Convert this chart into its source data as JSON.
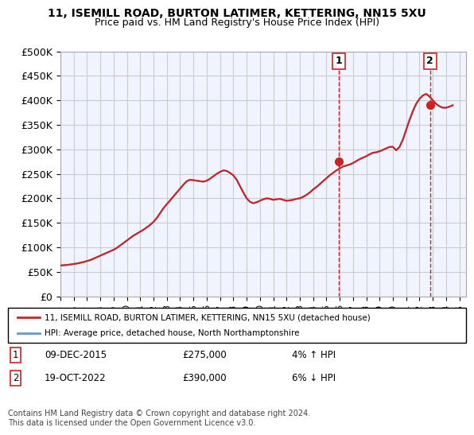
{
  "title": "11, ISEMILL ROAD, BURTON LATIMER, KETTERING, NN15 5XU",
  "subtitle": "Price paid vs. HM Land Registry's House Price Index (HPI)",
  "ylabel_ticks": [
    "£0",
    "£50K",
    "£100K",
    "£150K",
    "£200K",
    "£250K",
    "£300K",
    "£350K",
    "£400K",
    "£450K",
    "£500K"
  ],
  "ytick_vals": [
    0,
    50000,
    100000,
    150000,
    200000,
    250000,
    300000,
    350000,
    400000,
    450000,
    500000
  ],
  "ylim": [
    0,
    500000
  ],
  "xlim_start": 1995.0,
  "xlim_end": 2025.5,
  "hpi_color": "#6699cc",
  "price_color": "#cc2222",
  "dashed_color": "#cc2222",
  "bg_color": "#f0f4ff",
  "grid_color": "#cccccc",
  "purchase1_x": 2015.92,
  "purchase1_y": 275000,
  "purchase1_label": "1",
  "purchase2_x": 2022.79,
  "purchase2_y": 390000,
  "purchase2_label": "2",
  "legend_line1": "11, ISEMILL ROAD, BURTON LATIMER, KETTERING, NN15 5XU (detached house)",
  "legend_line2": "HPI: Average price, detached house, North Northamptonshire",
  "table_row1": [
    "1",
    "09-DEC-2015",
    "£275,000",
    "4% ↑ HPI"
  ],
  "table_row2": [
    "2",
    "19-OCT-2022",
    "£390,000",
    "6% ↓ HPI"
  ],
  "footer": "Contains HM Land Registry data © Crown copyright and database right 2024.\nThis data is licensed under the Open Government Licence v3.0.",
  "hpi_data_x": [
    1995.0,
    1995.25,
    1995.5,
    1995.75,
    1996.0,
    1996.25,
    1996.5,
    1996.75,
    1997.0,
    1997.25,
    1997.5,
    1997.75,
    1998.0,
    1998.25,
    1998.5,
    1998.75,
    1999.0,
    1999.25,
    1999.5,
    1999.75,
    2000.0,
    2000.25,
    2000.5,
    2000.75,
    2001.0,
    2001.25,
    2001.5,
    2001.75,
    2002.0,
    2002.25,
    2002.5,
    2002.75,
    2003.0,
    2003.25,
    2003.5,
    2003.75,
    2004.0,
    2004.25,
    2004.5,
    2004.75,
    2005.0,
    2005.25,
    2005.5,
    2005.75,
    2006.0,
    2006.25,
    2006.5,
    2006.75,
    2007.0,
    2007.25,
    2007.5,
    2007.75,
    2008.0,
    2008.25,
    2008.5,
    2008.75,
    2009.0,
    2009.25,
    2009.5,
    2009.75,
    2010.0,
    2010.25,
    2010.5,
    2010.75,
    2011.0,
    2011.25,
    2011.5,
    2011.75,
    2012.0,
    2012.25,
    2012.5,
    2012.75,
    2013.0,
    2013.25,
    2013.5,
    2013.75,
    2014.0,
    2014.25,
    2014.5,
    2014.75,
    2015.0,
    2015.25,
    2015.5,
    2015.75,
    2016.0,
    2016.25,
    2016.5,
    2016.75,
    2017.0,
    2017.25,
    2017.5,
    2017.75,
    2018.0,
    2018.25,
    2018.5,
    2018.75,
    2019.0,
    2019.25,
    2019.5,
    2019.75,
    2020.0,
    2020.25,
    2020.5,
    2020.75,
    2021.0,
    2021.25,
    2021.5,
    2021.75,
    2022.0,
    2022.25,
    2022.5,
    2022.75,
    2023.0,
    2023.25,
    2023.5,
    2023.75,
    2024.0,
    2024.25,
    2024.5
  ],
  "hpi_data_y": [
    63000,
    63500,
    64000,
    65000,
    66000,
    67000,
    68500,
    70000,
    72000,
    74000,
    77000,
    80000,
    83000,
    86000,
    89000,
    92000,
    95000,
    99000,
    104000,
    109000,
    114000,
    119000,
    124000,
    128000,
    132000,
    136000,
    141000,
    146000,
    152000,
    160000,
    170000,
    180000,
    188000,
    196000,
    204000,
    212000,
    220000,
    228000,
    235000,
    238000,
    237000,
    236000,
    235000,
    234000,
    236000,
    240000,
    245000,
    250000,
    254000,
    257000,
    256000,
    252000,
    247000,
    238000,
    225000,
    212000,
    200000,
    193000,
    190000,
    192000,
    195000,
    198000,
    200000,
    199000,
    197000,
    198000,
    199000,
    197000,
    195000,
    196000,
    197000,
    199000,
    200000,
    203000,
    207000,
    212000,
    218000,
    223000,
    229000,
    235000,
    241000,
    247000,
    252000,
    257000,
    261000,
    265000,
    267000,
    269000,
    272000,
    276000,
    280000,
    283000,
    286000,
    290000,
    293000,
    294000,
    296000,
    299000,
    302000,
    305000,
    305000,
    298000,
    305000,
    320000,
    340000,
    360000,
    378000,
    393000,
    403000,
    410000,
    413000,
    408000,
    400000,
    393000,
    388000,
    385000,
    385000,
    387000,
    390000
  ],
  "xtick_years": [
    1995,
    1996,
    1997,
    1998,
    1999,
    2000,
    2001,
    2002,
    2003,
    2004,
    2005,
    2006,
    2007,
    2008,
    2009,
    2010,
    2011,
    2012,
    2013,
    2014,
    2015,
    2016,
    2017,
    2018,
    2019,
    2020,
    2021,
    2022,
    2023,
    2024,
    2025
  ]
}
